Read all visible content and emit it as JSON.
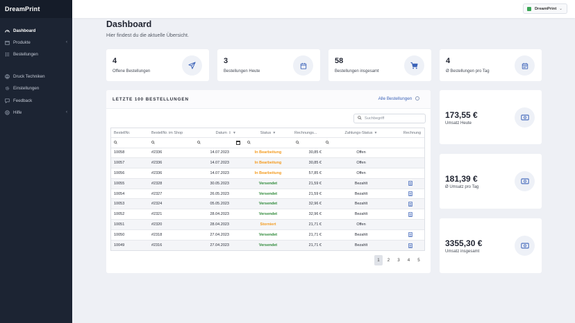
{
  "brand": "DreamPrint",
  "header": {
    "user_label": "DreamPrint"
  },
  "sidebar": {
    "items": [
      {
        "label": "Dashboard"
      },
      {
        "label": "Produkte"
      },
      {
        "label": "Bestellungen"
      },
      {
        "label": "Druck Techniken"
      },
      {
        "label": "Einstellungen"
      },
      {
        "label": "Feedback"
      },
      {
        "label": "Hilfe"
      }
    ]
  },
  "page": {
    "title": "Dashboard",
    "subtitle": "Hier findest du die aktuelle Übersicht."
  },
  "stats": [
    {
      "value": "4",
      "label": "Offene Bestellungen"
    },
    {
      "value": "3",
      "label": "Bestellungen Heute"
    },
    {
      "value": "58",
      "label": "Bestellungen insgesamt"
    },
    {
      "value": "4",
      "label": "Ø Bestellungen pro Tag"
    }
  ],
  "revenue": [
    {
      "value": "173,55 €",
      "label": "Umsatz Heute"
    },
    {
      "value": "181,39 €",
      "label": "Ø Umsatz pro Tag"
    },
    {
      "value": "3355,30 €",
      "label": "Umsatz insgesamt"
    }
  ],
  "orders": {
    "title": "LETZTE 100 BESTELLUNGEN",
    "all_link": "Alle Bestellungen",
    "search_placeholder": "Suchbegriff",
    "columns": [
      "BestellNr.",
      "BestellNr. im Shop",
      "Datum",
      "Status",
      "Rechnungs...",
      "Zahlungs-Status",
      "Rechnung"
    ],
    "rows": [
      {
        "nr": "10058",
        "shop": "#2336",
        "date": "14.07.2023",
        "status": "In Bearbeitung",
        "amount": "30,85 €",
        "payment": "Offen",
        "invoice": false
      },
      {
        "nr": "10057",
        "shop": "#2336",
        "date": "14.07.2023",
        "status": "In Bearbeitung",
        "amount": "30,85 €",
        "payment": "Offen",
        "invoice": false
      },
      {
        "nr": "10056",
        "shop": "#2336",
        "date": "14.07.2023",
        "status": "In Bearbeitung",
        "amount": "57,85 €",
        "payment": "Offen",
        "invoice": false
      },
      {
        "nr": "10055",
        "shop": "#2328",
        "date": "30.05.2023",
        "status": "Versendet",
        "amount": "21,59 €",
        "payment": "Bezahlt",
        "invoice": true
      },
      {
        "nr": "10054",
        "shop": "#2327",
        "date": "26.05.2023",
        "status": "Versendet",
        "amount": "21,59 €",
        "payment": "Bezahlt",
        "invoice": true
      },
      {
        "nr": "10053",
        "shop": "#2324",
        "date": "05.05.2023",
        "status": "Versendet",
        "amount": "32,96 €",
        "payment": "Bezahlt",
        "invoice": true
      },
      {
        "nr": "10052",
        "shop": "#2321",
        "date": "28.04.2023",
        "status": "Versendet",
        "amount": "32,96 €",
        "payment": "Bezahlt",
        "invoice": true
      },
      {
        "nr": "10051",
        "shop": "#2320",
        "date": "28.04.2023",
        "status": "Storniert",
        "amount": "21,71 €",
        "payment": "Offen",
        "invoice": false
      },
      {
        "nr": "10050",
        "shop": "#2318",
        "date": "27.04.2023",
        "status": "Versendet",
        "amount": "21,71 €",
        "payment": "Bezahlt",
        "invoice": true
      },
      {
        "nr": "10049",
        "shop": "#2316",
        "date": "27.04.2023",
        "status": "Versendet",
        "amount": "21,71 €",
        "payment": "Bezahlt",
        "invoice": true
      }
    ]
  },
  "pagination": {
    "pages": [
      "1",
      "2",
      "3",
      "4",
      "5"
    ],
    "current": "1"
  },
  "colors": {
    "sidebar": "#1c2433",
    "accent": "#3c63b8",
    "in_progress": "#f39a1d",
    "shipped": "#2f8a3a"
  }
}
